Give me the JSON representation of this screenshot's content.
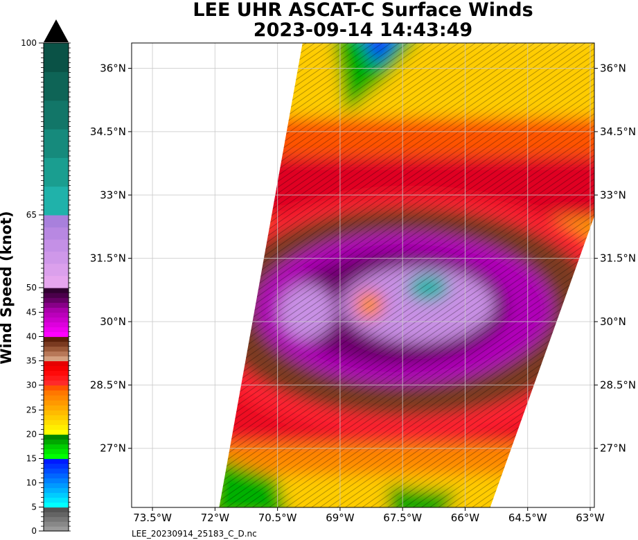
{
  "title_line1": "LEE UHR ASCAT-C Surface Winds",
  "title_line2": "2023-09-14 14:43:49",
  "colorbar": {
    "label": "Wind Speed (knot)",
    "min": 0,
    "max": 100,
    "ticks": [
      "0",
      "5",
      "10",
      "15",
      "20",
      "25",
      "30",
      "35",
      "40",
      "45",
      "50",
      "65",
      "100"
    ],
    "segments": [
      {
        "from": 0,
        "to": 5,
        "colors": [
          "#9a9a9a",
          "#888888",
          "#767676",
          "#646464",
          "#545454"
        ]
      },
      {
        "from": 5,
        "to": 10,
        "colors": [
          "#00ffff",
          "#00e6ff",
          "#00ccff",
          "#00b2ff",
          "#0099ff"
        ]
      },
      {
        "from": 10,
        "to": 15,
        "colors": [
          "#0080ff",
          "#0066ff",
          "#004cff",
          "#0033ff",
          "#0019ff"
        ]
      },
      {
        "from": 15,
        "to": 20,
        "colors": [
          "#00ff00",
          "#00e600",
          "#00cc00",
          "#00a800",
          "#008800"
        ]
      },
      {
        "from": 20,
        "to": 25,
        "colors": [
          "#ffff00",
          "#ffee00",
          "#ffdd00",
          "#ffcc00",
          "#ffbb00"
        ]
      },
      {
        "from": 25,
        "to": 30,
        "colors": [
          "#ffaa00",
          "#ff9900",
          "#ff8800",
          "#ff7700",
          "#ff5500"
        ]
      },
      {
        "from": 30,
        "to": 35,
        "colors": [
          "#ff2a2a",
          "#ff1a1a",
          "#ff0a0a",
          "#f50000",
          "#e60000"
        ]
      },
      {
        "from": 35,
        "to": 40,
        "colors": [
          "#d4a080",
          "#b87858",
          "#9a5838",
          "#7a3a20",
          "#5a200a"
        ]
      },
      {
        "from": 40,
        "to": 45,
        "colors": [
          "#ff00ff",
          "#ee00ee",
          "#dd00dd",
          "#cc00cc",
          "#bb00bb"
        ]
      },
      {
        "from": 45,
        "to": 50,
        "colors": [
          "#aa00aa",
          "#880088",
          "#660066",
          "#4a004a",
          "#300030"
        ]
      },
      {
        "from": 50,
        "to": 65,
        "colors": [
          "#e6a6ee",
          "#dba0ec",
          "#cf98e9",
          "#c490e6",
          "#b888e2",
          "#a880dc"
        ]
      },
      {
        "from": 65,
        "to": 100,
        "colors": [
          "#20b2aa",
          "#1a9e90",
          "#168a7c",
          "#127668",
          "#0e6456",
          "#0a5246"
        ]
      }
    ],
    "arrow_color": "#000000"
  },
  "map": {
    "lon_min": -74.0,
    "lon_max": -62.9,
    "lat_min": 25.6,
    "lat_max": 36.6,
    "lon_ticks": [
      -73.5,
      -72.0,
      -70.5,
      -69.0,
      -67.5,
      -66.0,
      -64.5,
      -63.0
    ],
    "lon_labels": [
      "73.5°W",
      "72°W",
      "70.5°W",
      "69°W",
      "67.5°W",
      "66°W",
      "64.5°W",
      "63°W"
    ],
    "lat_ticks": [
      27.0,
      28.5,
      30.0,
      31.5,
      33.0,
      34.5,
      36.0
    ],
    "lat_labels": [
      "27°N",
      "28.5°N",
      "30°N",
      "31.5°N",
      "33°N",
      "34.5°N",
      "36°N"
    ],
    "swath_corners": [
      [
        -71.9,
        25.6
      ],
      [
        -65.4,
        25.6
      ],
      [
        -62.9,
        32.5
      ],
      [
        -62.9,
        36.6
      ],
      [
        -69.9,
        36.6
      ]
    ],
    "storm_center": [
      -68.3,
      30.4
    ],
    "grid_color": "#c8c8c8"
  },
  "filename": "LEE_20230914_25183_C_D.nc"
}
